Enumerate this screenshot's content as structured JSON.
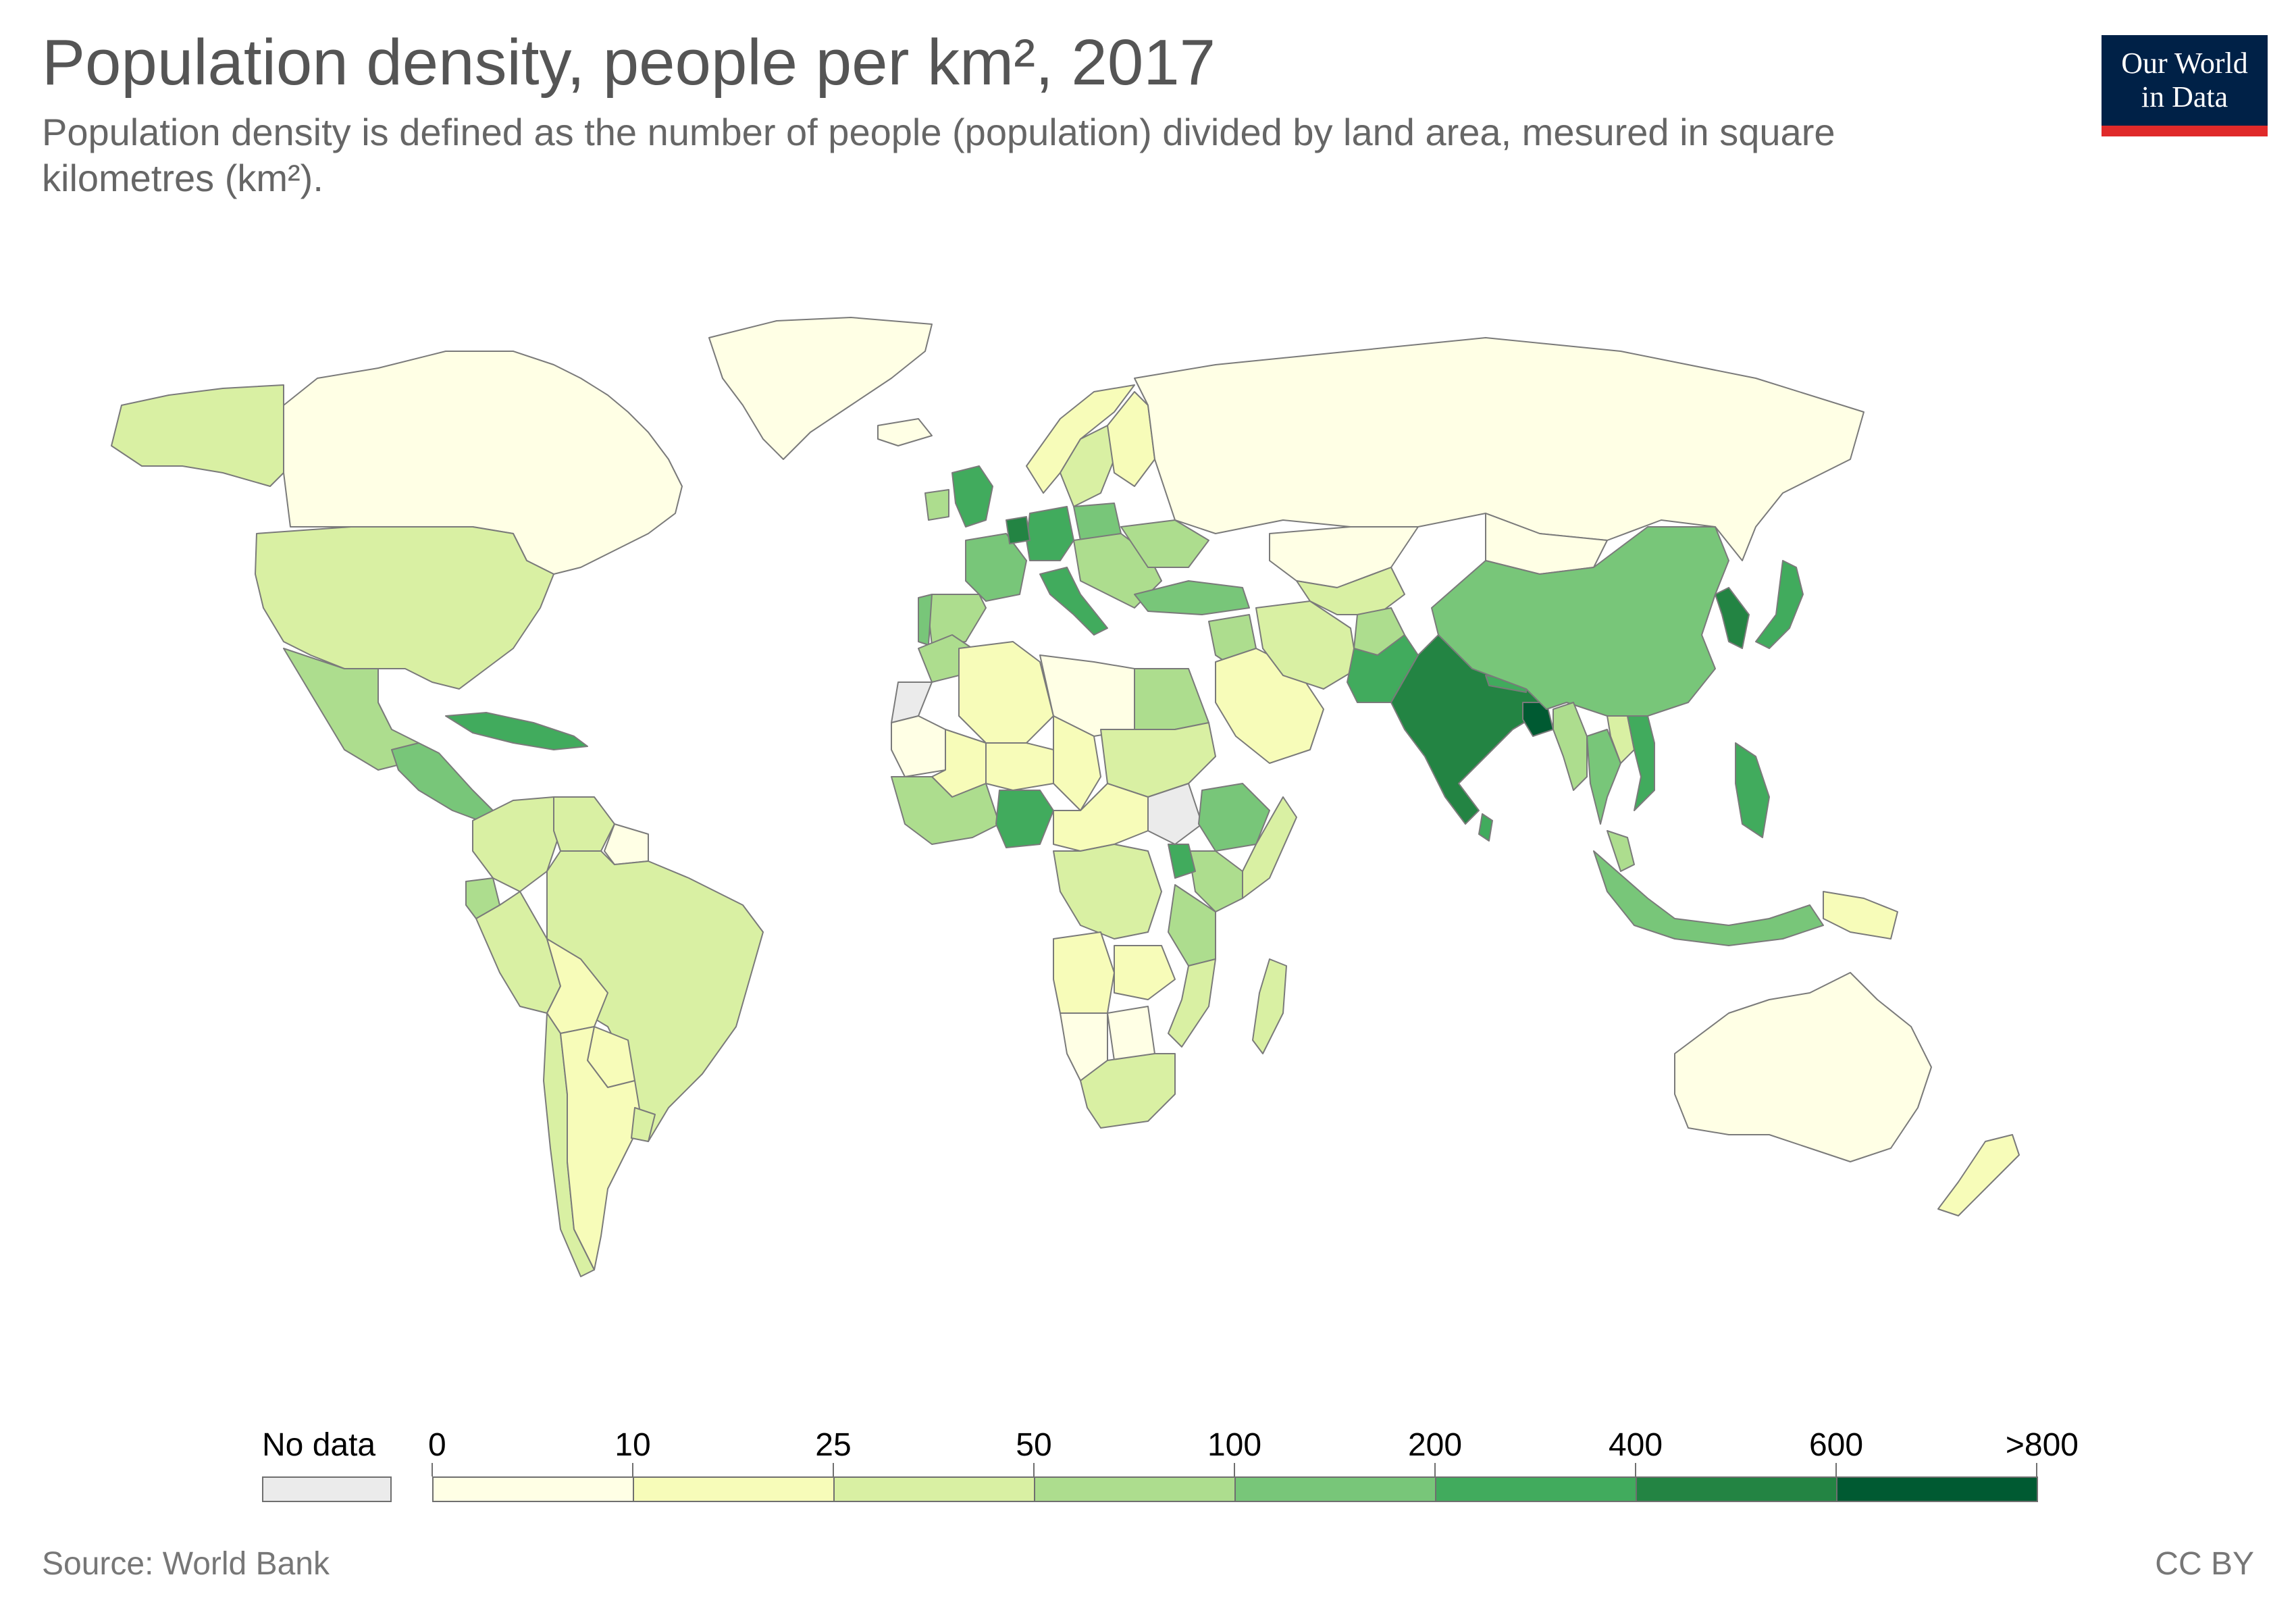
{
  "header": {
    "title": "Population density, people per km², 2017",
    "subtitle": "Population density is defined as the number of people (population) divided by land area, mesured in square kilometres (km²)."
  },
  "logo": {
    "line1": "Our World",
    "line2": "in Data"
  },
  "legend": {
    "no_data_label": "No data",
    "no_data_color": "#ebebeb",
    "tick_labels": [
      "0",
      "10",
      "25",
      "50",
      "100",
      "200",
      "400",
      "600",
      ">800"
    ],
    "colors": [
      "#ffffe5",
      "#f7fcb9",
      "#d9f0a3",
      "#addd8e",
      "#78c679",
      "#41ab5d",
      "#238443",
      "#005a32"
    ]
  },
  "footer": {
    "source": "Source: World Bank",
    "license": "CC BY"
  },
  "chart_data": {
    "type": "choropleth",
    "bins": [
      {
        "range": "0–10",
        "color": "#ffffe5"
      },
      {
        "range": "10–25",
        "color": "#f7fcb9"
      },
      {
        "range": "25–50",
        "color": "#d9f0a3"
      },
      {
        "range": "50–100",
        "color": "#addd8e"
      },
      {
        "range": "100–200",
        "color": "#78c679"
      },
      {
        "range": "200–400",
        "color": "#41ab5d"
      },
      {
        "range": "400–600",
        "color": "#238443"
      },
      {
        "range": ">800",
        "color": "#005a32"
      }
    ],
    "regions": [
      {
        "name": "Canada",
        "bin": 0
      },
      {
        "name": "Greenland",
        "bin": 0
      },
      {
        "name": "Alaska",
        "bin": 2
      },
      {
        "name": "United States",
        "bin": 2
      },
      {
        "name": "Mexico",
        "bin": 3
      },
      {
        "name": "Central America",
        "bin": 4
      },
      {
        "name": "Cuba",
        "bin": 5
      },
      {
        "name": "Colombia",
        "bin": 2
      },
      {
        "name": "Venezuela",
        "bin": 2
      },
      {
        "name": "Guianas",
        "bin": 0
      },
      {
        "name": "Brazil",
        "bin": 2
      },
      {
        "name": "Peru",
        "bin": 2
      },
      {
        "name": "Ecuador",
        "bin": 3
      },
      {
        "name": "Bolivia",
        "bin": 1
      },
      {
        "name": "Paraguay",
        "bin": 1
      },
      {
        "name": "Chile",
        "bin": 2
      },
      {
        "name": "Argentina",
        "bin": 1
      },
      {
        "name": "Uruguay",
        "bin": 2
      },
      {
        "name": "Iceland",
        "bin": 0
      },
      {
        "name": "Norway",
        "bin": 1
      },
      {
        "name": "Sweden",
        "bin": 2
      },
      {
        "name": "Finland",
        "bin": 1
      },
      {
        "name": "United Kingdom",
        "bin": 5
      },
      {
        "name": "Ireland",
        "bin": 3
      },
      {
        "name": "France",
        "bin": 4
      },
      {
        "name": "Spain",
        "bin": 3
      },
      {
        "name": "Portugal",
        "bin": 4
      },
      {
        "name": "Germany",
        "bin": 5
      },
      {
        "name": "Benelux",
        "bin": 6
      },
      {
        "name": "Italy",
        "bin": 5
      },
      {
        "name": "Poland",
        "bin": 4
      },
      {
        "name": "Eastern Europe",
        "bin": 3
      },
      {
        "name": "Ukraine",
        "bin": 3
      },
      {
        "name": "Russia",
        "bin": 0
      },
      {
        "name": "Kazakhstan",
        "bin": 0
      },
      {
        "name": "Mongolia",
        "bin": 0
      },
      {
        "name": "Turkey",
        "bin": 4
      },
      {
        "name": "Middle East",
        "bin": 3
      },
      {
        "name": "Saudi Arabia",
        "bin": 1
      },
      {
        "name": "Iran",
        "bin": 2
      },
      {
        "name": "Central Asia",
        "bin": 2
      },
      {
        "name": "Afghanistan",
        "bin": 3
      },
      {
        "name": "Pakistan",
        "bin": 5
      },
      {
        "name": "India",
        "bin": 6
      },
      {
        "name": "Nepal",
        "bin": 5
      },
      {
        "name": "Bangladesh",
        "bin": 7
      },
      {
        "name": "Sri Lanka",
        "bin": 5
      },
      {
        "name": "China",
        "bin": 4
      },
      {
        "name": "Korea",
        "bin": 6
      },
      {
        "name": "Japan",
        "bin": 5
      },
      {
        "name": "Myanmar",
        "bin": 3
      },
      {
        "name": "Thailand",
        "bin": 4
      },
      {
        "name": "Laos",
        "bin": 2
      },
      {
        "name": "Vietnam",
        "bin": 5
      },
      {
        "name": "Malaysia",
        "bin": 3
      },
      {
        "name": "Philippines",
        "bin": 5
      },
      {
        "name": "Indonesia",
        "bin": 4
      },
      {
        "name": "Papua New Guinea",
        "bin": 1
      },
      {
        "name": "Australia",
        "bin": 0
      },
      {
        "name": "New Zealand",
        "bin": 1
      },
      {
        "name": "Morocco",
        "bin": 3
      },
      {
        "name": "Western Sahara",
        "bin": -1
      },
      {
        "name": "Mauritania",
        "bin": 0
      },
      {
        "name": "Algeria",
        "bin": 1
      },
      {
        "name": "Libya",
        "bin": 0
      },
      {
        "name": "Egypt",
        "bin": 3
      },
      {
        "name": "Mali",
        "bin": 1
      },
      {
        "name": "Niger",
        "bin": 1
      },
      {
        "name": "Chad",
        "bin": 1
      },
      {
        "name": "Sudan",
        "bin": 2
      },
      {
        "name": "South Sudan",
        "bin": -1
      },
      {
        "name": "West Africa",
        "bin": 3
      },
      {
        "name": "Nigeria",
        "bin": 5
      },
      {
        "name": "Central Africa",
        "bin": 1
      },
      {
        "name": "DR Congo",
        "bin": 2
      },
      {
        "name": "Ethiopia",
        "bin": 4
      },
      {
        "name": "Somalia",
        "bin": 2
      },
      {
        "name": "Kenya",
        "bin": 3
      },
      {
        "name": "Uganda",
        "bin": 5
      },
      {
        "name": "Tanzania",
        "bin": 3
      },
      {
        "name": "Angola",
        "bin": 1
      },
      {
        "name": "Zambia",
        "bin": 1
      },
      {
        "name": "Mozambique",
        "bin": 2
      },
      {
        "name": "Namibia",
        "bin": 0
      },
      {
        "name": "Botswana",
        "bin": 0
      },
      {
        "name": "South Africa",
        "bin": 2
      },
      {
        "name": "Madagascar",
        "bin": 2
      }
    ]
  }
}
